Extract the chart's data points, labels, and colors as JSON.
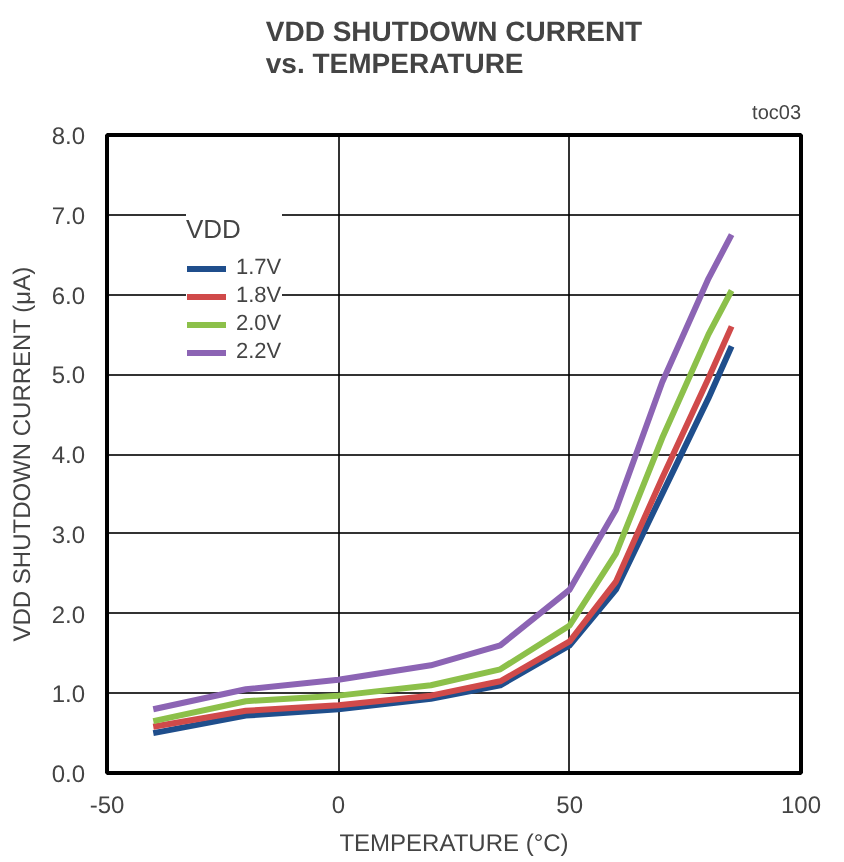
{
  "chart_data": {
    "type": "line",
    "title": "VDD SHUTDOWN CURRENT\nvs. TEMPERATURE",
    "xlabel": "TEMPERATURE (°C)",
    "ylabel": "VDD SHUTDOWN CURRENT (μA)",
    "legend_title": "VDD",
    "annotations": [
      "toc03"
    ],
    "x": [
      -40,
      -20,
      0,
      20,
      35,
      50,
      60,
      70,
      80,
      85
    ],
    "series": [
      {
        "name": "1.7V",
        "color": "#1f4e8c",
        "values": [
          0.5,
          0.72,
          0.8,
          0.93,
          1.1,
          1.6,
          2.3,
          3.5,
          4.7,
          5.35
        ]
      },
      {
        "name": "1.8V",
        "color": "#d04a4a",
        "values": [
          0.58,
          0.78,
          0.85,
          0.97,
          1.15,
          1.65,
          2.4,
          3.7,
          4.95,
          5.6
        ]
      },
      {
        "name": "2.0V",
        "color": "#8cc04a",
        "values": [
          0.65,
          0.9,
          0.97,
          1.1,
          1.3,
          1.85,
          2.75,
          4.2,
          5.5,
          6.05
        ]
      },
      {
        "name": "2.2V",
        "color": "#8c64b4",
        "values": [
          0.8,
          1.05,
          1.17,
          1.35,
          1.6,
          2.3,
          3.3,
          4.9,
          6.2,
          6.75
        ]
      }
    ],
    "xlim": [
      -50,
      100
    ],
    "xticks": [
      -50,
      0,
      50,
      100
    ],
    "ylim": [
      0,
      8
    ],
    "yticks": [
      {
        "value": 0,
        "label": "0.0"
      },
      {
        "value": 1,
        "label": "1.0"
      },
      {
        "value": 2,
        "label": "2.0"
      },
      {
        "value": 3,
        "label": "3.0"
      },
      {
        "value": 4,
        "label": "4.0"
      },
      {
        "value": 5,
        "label": "5.0"
      },
      {
        "value": 6,
        "label": "6.0"
      },
      {
        "value": 7,
        "label": "7.0"
      },
      {
        "value": 8,
        "label": "8.0"
      }
    ],
    "grid": true,
    "legend": "top left",
    "line_style": "solid",
    "marker": "none"
  }
}
